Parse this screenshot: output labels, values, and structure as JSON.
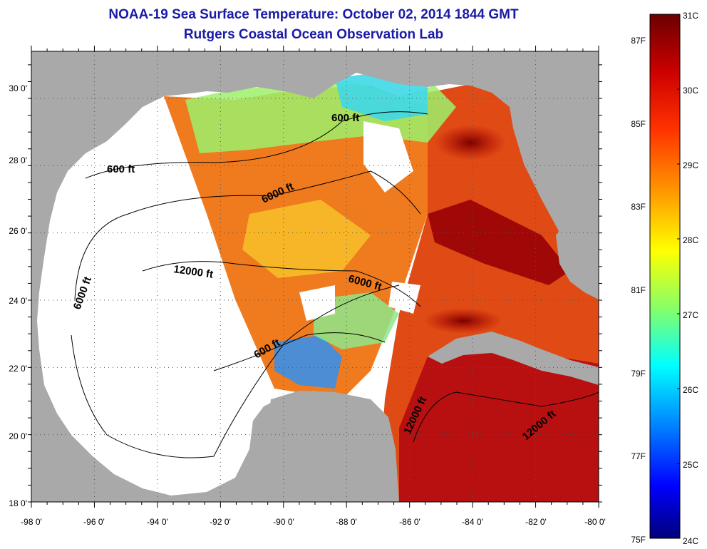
{
  "header": {
    "title": "NOAA-19 Sea Surface Temperature:  October 02, 2014 1844 GMT",
    "subtitle": "Rutgers Coastal Ocean Observation Lab"
  },
  "map": {
    "lon_ticks": [
      "-98 0'",
      "-96 0'",
      "-94 0'",
      "-92 0'",
      "-90 0'",
      "-88 0'",
      "-86 0'",
      "-84 0'",
      "-82 0'",
      "-80 0'"
    ],
    "lat_ticks": [
      "30 0'",
      "28 0'",
      "26 0'",
      "24 0'",
      "22 0'",
      "20 0'",
      "18 0'"
    ],
    "contour_labels": [
      {
        "text": "600 ft"
      },
      {
        "text": "600 ft"
      },
      {
        "text": "600 ft"
      },
      {
        "text": "6000 ft"
      },
      {
        "text": "6000 ft"
      },
      {
        "text": "6000 ft"
      },
      {
        "text": "12000 ft"
      },
      {
        "text": "12000 ft"
      },
      {
        "text": "12000 ft"
      }
    ],
    "colors": {
      "land": "#a9a9a9",
      "no_data": "#ffffff",
      "grid": "#555555"
    }
  },
  "colorbar": {
    "celsius_labels": [
      "31C",
      "30C",
      "29C",
      "28C",
      "27C",
      "26C",
      "25C",
      "24C"
    ],
    "fahrenheit_labels": [
      "87F",
      "85F",
      "83F",
      "81F",
      "79F",
      "77F",
      "75F"
    ],
    "gradient": [
      "#6b0000",
      "#cc0000",
      "#ff3300",
      "#ff9900",
      "#ffff00",
      "#88ff66",
      "#00ffff",
      "#0088ff",
      "#0000ff",
      "#00007a"
    ]
  }
}
